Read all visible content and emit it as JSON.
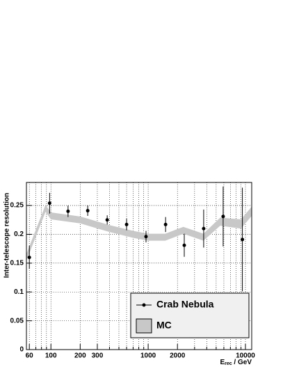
{
  "chart_data": {
    "type": "errorbar",
    "ylabel": "Inter-telescope resolution",
    "xlabel": {
      "main": "E",
      "sub": "rec",
      "unit": " / GeV"
    },
    "log_x": true,
    "grid": true,
    "legend_position": "bottom-right",
    "xlim": [
      56,
      11600
    ],
    "ylim": [
      0,
      0.29
    ],
    "xticks": [
      60,
      100,
      200,
      300,
      1000,
      2000,
      10000
    ],
    "xminorticks": [
      70,
      80,
      90,
      400,
      500,
      600,
      700,
      800,
      900,
      3000,
      4000,
      5000,
      6000,
      7000,
      8000,
      9000
    ],
    "yticks": [
      0,
      0.05,
      0.1,
      0.15,
      0.2,
      0.25
    ],
    "series": [
      {
        "name": "Crab Nebula",
        "color": "#000000",
        "x": [
          60,
          97,
          150,
          239,
          379,
          600,
          950,
          1510,
          2350,
          3720,
          5900,
          9300
        ],
        "values": [
          0.16,
          0.254,
          0.24,
          0.241,
          0.225,
          0.217,
          0.196,
          0.217,
          0.181,
          0.21,
          0.231,
          0.191
        ],
        "errors": [
          0.02,
          0.018,
          0.01,
          0.009,
          0.008,
          0.01,
          0.01,
          0.013,
          0.02,
          0.033,
          0.052,
          0.09
        ]
      }
    ],
    "band": {
      "name": "MC",
      "color": "#c8c8c8",
      "x": [
        56,
        88,
        100,
        200,
        400,
        700,
        1000,
        1500,
        2300,
        3700,
        5500,
        9000,
        11600
      ],
      "lower": [
        0.154,
        0.239,
        0.226,
        0.219,
        0.204,
        0.194,
        0.189,
        0.189,
        0.201,
        0.189,
        0.215,
        0.21,
        0.232
      ],
      "upper": [
        0.166,
        0.251,
        0.238,
        0.231,
        0.216,
        0.206,
        0.201,
        0.201,
        0.213,
        0.201,
        0.229,
        0.226,
        0.248
      ]
    }
  }
}
